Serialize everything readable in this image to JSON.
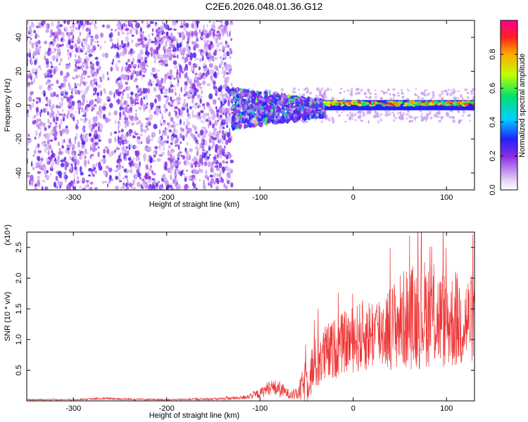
{
  "title": "C2E6.2026.048.01.36.G12",
  "chart_data": [
    {
      "type": "heatmap",
      "xlabel": "Height of straight line (km)",
      "ylabel": "Frequency (Hz)",
      "xlim": [
        -350,
        130
      ],
      "ylim": [
        -50,
        50
      ],
      "xticks": [
        -300,
        -200,
        -100,
        0,
        100
      ],
      "yticks": [
        -40,
        -20,
        0,
        20,
        40
      ],
      "xtick_labels": [
        "-300",
        "-200",
        "-100",
        "0",
        "100"
      ],
      "ytick_labels": [
        "-40",
        "-20",
        "0",
        "20",
        "40"
      ],
      "colorbar": {
        "label": "Normalized spectral amplitude",
        "range": [
          0.0,
          1.0
        ],
        "ticks": [
          0.0,
          0.2,
          0.4,
          0.6,
          0.8
        ],
        "tick_labels": [
          "0.0",
          "0.2",
          "0.4",
          "0.6",
          "0.8"
        ]
      },
      "features": [
        {
          "region": "diffuse noise",
          "x_range": [
            -350,
            -130
          ],
          "freq_range": [
            -50,
            50
          ],
          "amplitude": 0.15
        },
        {
          "region": "emergent signal",
          "x_range": [
            -130,
            -30
          ],
          "freq_range": [
            -12,
            12
          ],
          "amplitude": 0.4
        },
        {
          "region": "strong narrow line",
          "x_range": [
            -30,
            130
          ],
          "freq_range": [
            -3,
            3
          ],
          "amplitude": 0.95
        }
      ]
    },
    {
      "type": "line",
      "xlabel": "Height of straight line (km)",
      "ylabel": "SNR (10 * v/v)",
      "scale_label": "(x10⁴)",
      "xlim": [
        -350,
        130
      ],
      "ylim": [
        0,
        2.75
      ],
      "xticks": [
        -300,
        -200,
        -100,
        0,
        100
      ],
      "xtick_labels": [
        "-300",
        "-200",
        "-100",
        "0",
        "100"
      ],
      "yticks": [
        0.5,
        1.0,
        1.5,
        2.0,
        2.5
      ],
      "ytick_labels": [
        "0.5",
        "1.0",
        "1.5",
        "2.0",
        "2.5"
      ],
      "series_color": "#ee3333",
      "envelope": {
        "x": [
          -350,
          -300,
          -260,
          -250,
          -200,
          -150,
          -120,
          -100,
          -90,
          -80,
          -70,
          -60,
          -50,
          -40,
          -30,
          -20,
          -10,
          0,
          10,
          20,
          30,
          40,
          50,
          60,
          70,
          80,
          90,
          100,
          110,
          120,
          130
        ],
        "mean": [
          0.02,
          0.02,
          0.04,
          0.03,
          0.02,
          0.03,
          0.05,
          0.12,
          0.22,
          0.2,
          0.12,
          0.1,
          0.35,
          0.6,
          0.75,
          0.85,
          0.95,
          1.0,
          1.05,
          1.1,
          1.15,
          1.2,
          1.3,
          1.35,
          1.4,
          1.45,
          1.35,
          1.3,
          1.3,
          1.3,
          1.35
        ],
        "spread": [
          0.01,
          0.01,
          0.02,
          0.02,
          0.01,
          0.02,
          0.03,
          0.08,
          0.12,
          0.15,
          0.08,
          0.1,
          0.4,
          0.45,
          0.5,
          0.5,
          0.5,
          0.55,
          0.6,
          0.6,
          0.65,
          0.7,
          0.8,
          0.85,
          0.9,
          0.9,
          0.85,
          0.8,
          0.8,
          0.8,
          0.7
        ]
      }
    }
  ]
}
